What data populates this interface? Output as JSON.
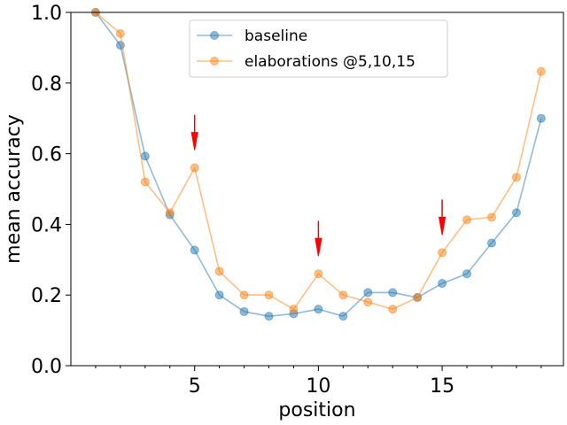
{
  "chart_data": {
    "type": "line",
    "xlabel": "position",
    "ylabel": "mean accuracy",
    "xlim": [
      0,
      19.9
    ],
    "ylim": [
      0.0,
      1.0
    ],
    "xticks": [
      5,
      10,
      15
    ],
    "xtick_labels": [
      "5",
      "10",
      "15"
    ],
    "yticks": [
      0.0,
      0.2,
      0.4,
      0.6,
      0.8,
      1.0
    ],
    "ytick_labels": [
      "0.0",
      "0.2",
      "0.4",
      "0.6",
      "0.8",
      "1.0"
    ],
    "grid": false,
    "legend_position": "upper center",
    "x": [
      1,
      2,
      3,
      4,
      5,
      6,
      7,
      8,
      9,
      10,
      11,
      12,
      13,
      14,
      15,
      16,
      17,
      18,
      19
    ],
    "series": [
      {
        "name": "baseline",
        "color": "#1f77b4",
        "values": [
          1.0,
          0.907,
          0.593,
          0.427,
          0.327,
          0.2,
          0.153,
          0.14,
          0.147,
          0.16,
          0.14,
          0.207,
          0.207,
          0.193,
          0.233,
          0.26,
          0.347,
          0.433,
          0.7
        ]
      },
      {
        "name": "elaborations @5,10,15",
        "color": "#ff7f0e",
        "values": [
          1.0,
          0.94,
          0.52,
          0.433,
          0.56,
          0.267,
          0.2,
          0.2,
          0.16,
          0.26,
          0.2,
          0.18,
          0.16,
          0.193,
          0.32,
          0.413,
          0.42,
          0.533,
          0.833
        ]
      }
    ],
    "annotations": [
      {
        "type": "arrow",
        "x": 5,
        "y_from": 0.71,
        "y_to": 0.61,
        "color": "#ff0000"
      },
      {
        "type": "arrow",
        "x": 10,
        "y_from": 0.41,
        "y_to": 0.31,
        "color": "#ff0000"
      },
      {
        "type": "arrow",
        "x": 15,
        "y_from": 0.47,
        "y_to": 0.37,
        "color": "#ff0000"
      }
    ]
  }
}
